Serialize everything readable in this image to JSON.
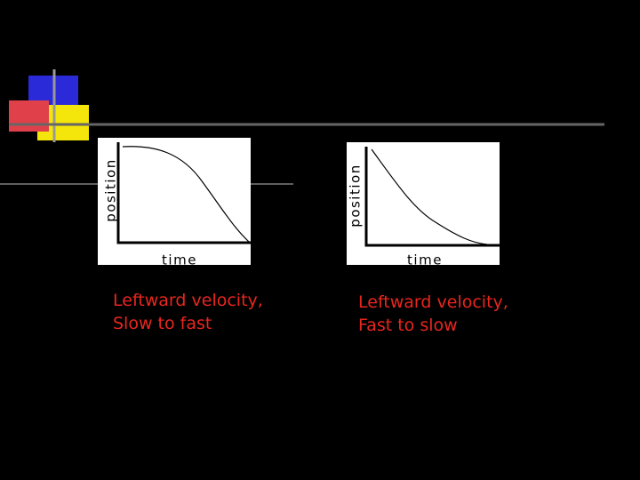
{
  "graphs": [
    {
      "y_label": "position",
      "x_label": "time",
      "caption": [
        "Leftward velocity,",
        "Slow to fast"
      ]
    },
    {
      "y_label": "position",
      "x_label": "time",
      "caption": [
        "Leftward velocity,",
        "Fast to slow"
      ]
    }
  ]
}
